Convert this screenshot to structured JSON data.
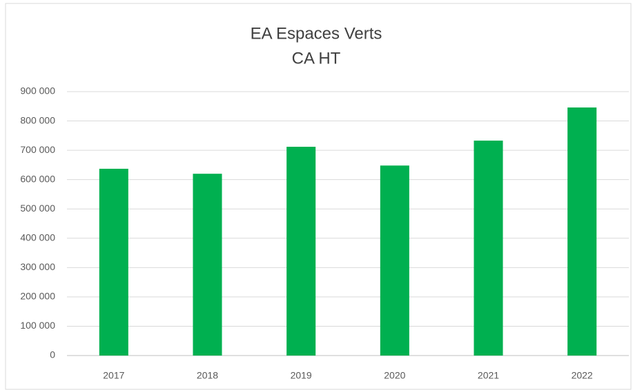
{
  "chart_data": {
    "type": "bar",
    "title": "EA Espaces Verts",
    "subtitle": "CA HT",
    "categories": [
      "2017",
      "2018",
      "2019",
      "2020",
      "2021",
      "2022"
    ],
    "values": [
      637000,
      620000,
      712000,
      648000,
      733000,
      846000
    ],
    "color": "#00b050",
    "ylim": [
      0,
      900000
    ],
    "yticks": [
      0,
      {
        "value": 100000,
        "label": "100 000"
      },
      {
        "value": 200000,
        "label": "200 000"
      },
      {
        "value": 300000,
        "label": "300 000"
      },
      {
        "value": 400000,
        "label": "400 000"
      },
      {
        "value": 500000,
        "label": "500 000"
      },
      {
        "value": 600000,
        "label": "600 000"
      },
      {
        "value": 700000,
        "label": "700 000"
      },
      {
        "value": 800000,
        "label": "800 000"
      },
      {
        "value": 900000,
        "label": "900 000"
      }
    ],
    "grid": true
  }
}
